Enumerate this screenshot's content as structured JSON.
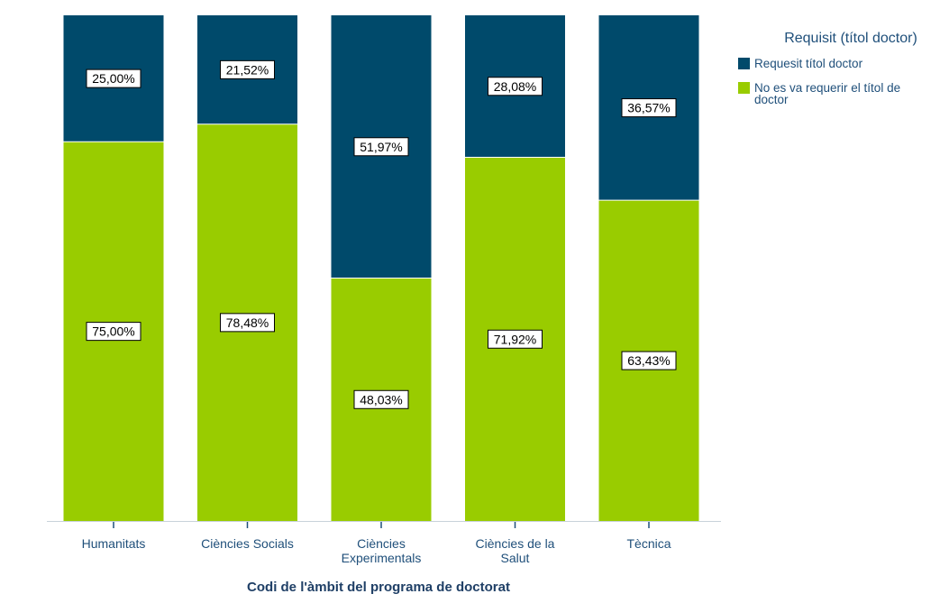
{
  "chart_data": {
    "type": "bar",
    "stacked": true,
    "percent_stacked": true,
    "categories": [
      [
        "Humanitats"
      ],
      [
        "Ciències Socials"
      ],
      [
        "Ciències",
        "Experimentals"
      ],
      [
        "Ciències de la",
        "Salut"
      ],
      [
        "Tècnica"
      ]
    ],
    "series": [
      {
        "name": "No es va requerir el títol de doctor",
        "legend_lines": [
          "No es va requerir el títol de",
          "doctor"
        ],
        "color": "#99cc00",
        "values": [
          75.0,
          78.48,
          48.03,
          71.92,
          63.43
        ],
        "labels": [
          "75,00%",
          "78,48%",
          "48,03%",
          "71,92%",
          "63,43%"
        ]
      },
      {
        "name": "Requesit títol doctor",
        "legend_lines": [
          "Requesit títol doctor"
        ],
        "color": "#004a6b",
        "values": [
          25.0,
          21.52,
          51.97,
          28.08,
          36.57
        ],
        "labels": [
          "25,00%",
          "21,52%",
          "51,97%",
          "28,08%",
          "36,57%"
        ]
      }
    ],
    "legend_order": [
      1,
      0
    ],
    "xlabel": "Codi de l'àmbit del programa de doctorat",
    "ylabel": "",
    "ylim": [
      0,
      100
    ],
    "grid": false,
    "legend": {
      "title": "Requisit (títol doctor)",
      "position": "top-right"
    },
    "colors": {
      "axis": "#c8d2da",
      "tick_text": "#1f4f7a",
      "label_box_fill": "#ffffff",
      "label_box_stroke": "#000000"
    }
  }
}
